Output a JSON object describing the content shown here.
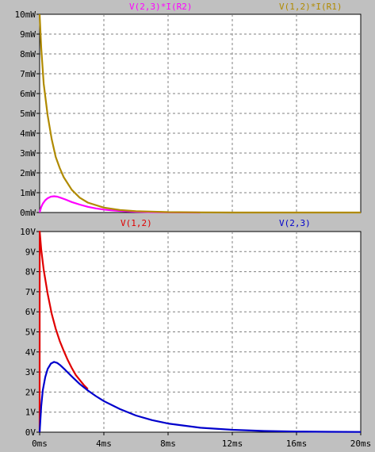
{
  "chart_data": [
    {
      "type": "line",
      "title": "",
      "xlabel": "",
      "ylabel": "",
      "xlim": [
        0,
        20
      ],
      "ylim": [
        0,
        10
      ],
      "x_unit": "ms",
      "y_unit": "mW",
      "grid": true,
      "yticks": [
        "0mW",
        "1mW",
        "2mW",
        "3mW",
        "4mW",
        "5mW",
        "6mW",
        "7mW",
        "8mW",
        "9mW",
        "10mW"
      ],
      "series": [
        {
          "name": "V(2,3)*I(R2)",
          "color": "#ff00ff",
          "x": [
            0,
            0.1,
            0.2,
            0.35,
            0.5,
            0.7,
            0.9,
            1.1,
            1.3,
            1.6,
            2.0,
            2.5,
            3.0,
            3.5,
            4.0,
            4.5,
            5.0,
            6.0,
            7.0,
            8.0,
            10.0
          ],
          "y": [
            0,
            0.28,
            0.45,
            0.62,
            0.72,
            0.8,
            0.82,
            0.8,
            0.75,
            0.66,
            0.53,
            0.4,
            0.29,
            0.21,
            0.15,
            0.11,
            0.08,
            0.04,
            0.02,
            0.01,
            0
          ]
        },
        {
          "name": "V(1,2)*I(R1)",
          "color": "#b08a00",
          "x": [
            0,
            0.01,
            0.1,
            0.25,
            0.5,
            0.75,
            1.0,
            1.25,
            1.5,
            2.0,
            2.5,
            3.0,
            4.0,
            5.0,
            6.0,
            8.0,
            10,
            12,
            16,
            20
          ],
          "y": [
            10,
            9.8,
            8.3,
            6.5,
            4.9,
            3.7,
            2.8,
            2.25,
            1.78,
            1.15,
            0.75,
            0.5,
            0.25,
            0.13,
            0.07,
            0.02,
            0.01,
            0,
            0,
            0
          ]
        }
      ]
    },
    {
      "type": "line",
      "title": "",
      "xlabel": "",
      "ylabel": "",
      "xlim": [
        0,
        20
      ],
      "ylim": [
        0,
        10
      ],
      "x_unit": "ms",
      "y_unit": "V",
      "grid": true,
      "xticks": [
        "0ms",
        "4ms",
        "8ms",
        "12ms",
        "16ms",
        "20ms"
      ],
      "yticks": [
        "0V",
        "1V",
        "2V",
        "3V",
        "4V",
        "5V",
        "6V",
        "7V",
        "8V",
        "9V",
        "10V"
      ],
      "series": [
        {
          "name": "V(1,2)",
          "color": "#e00000",
          "x": [
            0,
            0.005,
            0.1,
            0.25,
            0.5,
            0.75,
            1.0,
            1.25,
            1.5,
            1.75,
            2.0,
            2.25,
            2.5,
            2.75,
            3.0
          ],
          "y": [
            0,
            10,
            9.1,
            8.1,
            6.9,
            5.9,
            5.15,
            4.55,
            4.05,
            3.6,
            3.2,
            2.85,
            2.6,
            2.35,
            2.15
          ]
        },
        {
          "name": "V(2,3)",
          "color": "#0000cc",
          "x": [
            0,
            0.1,
            0.2,
            0.35,
            0.5,
            0.7,
            0.9,
            1.1,
            1.3,
            1.6,
            2.0,
            2.5,
            3.0,
            3.5,
            4.0,
            5.0,
            6.0,
            7.0,
            8.0,
            10,
            12,
            14,
            16,
            18,
            20
          ],
          "y": [
            0,
            1.3,
            2.1,
            2.75,
            3.15,
            3.42,
            3.5,
            3.45,
            3.33,
            3.1,
            2.78,
            2.4,
            2.08,
            1.8,
            1.55,
            1.15,
            0.83,
            0.6,
            0.43,
            0.22,
            0.12,
            0.06,
            0.03,
            0.02,
            0.01
          ]
        }
      ]
    }
  ]
}
